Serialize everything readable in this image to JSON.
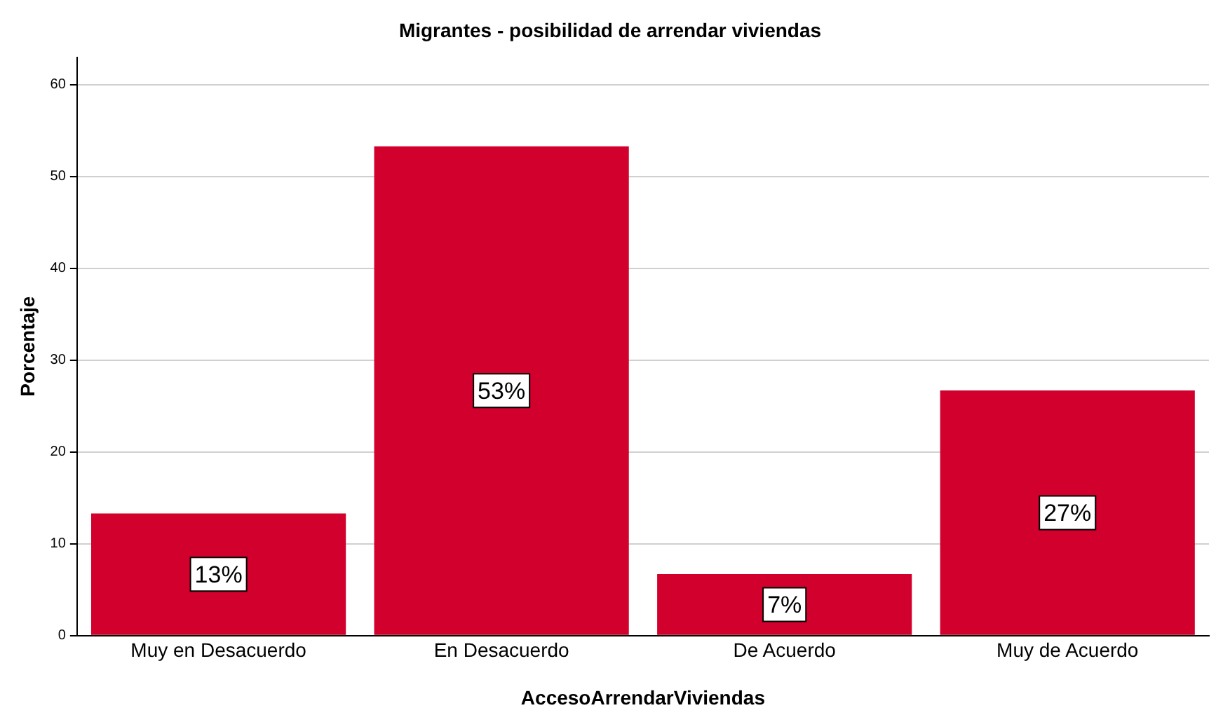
{
  "chart_data": {
    "type": "bar",
    "title": "Migrantes - posibilidad de arrendar viviendas",
    "xlabel": "AccesoArrendarViviendas",
    "ylabel": "Porcentaje",
    "categories": [
      "Muy en Desacuerdo",
      "En Desacuerdo",
      "De Acuerdo",
      "Muy de Acuerdo"
    ],
    "values": [
      13.3,
      53.3,
      6.7,
      26.7
    ],
    "value_labels": [
      "13%",
      "53%",
      "7%",
      "27%"
    ],
    "color": "#d2002c",
    "ylim": [
      0,
      63
    ],
    "yticks": [
      0,
      10,
      20,
      30,
      40,
      50,
      60
    ],
    "grid": "y"
  }
}
